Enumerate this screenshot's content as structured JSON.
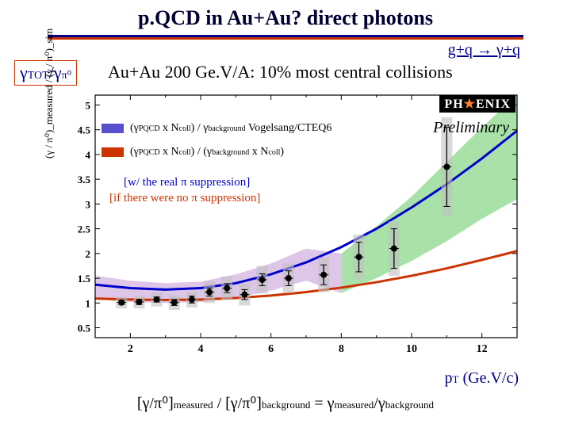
{
  "title": "p.QCD in Au+Au? direct photons",
  "reaction": "g+q → γ+q",
  "ylabel_html": "γ<span class='sub'>TOT</span>/γ<span class='sub'>π⁰</span>",
  "subtitle": "Au+Au 200 Ge.V/A: 10% most central collisions",
  "phenix": {
    "text1": "PH",
    "star": "★",
    "text2": "ENIX"
  },
  "preliminary": "Preliminary",
  "legend1_text": "(γ<span class='sub'>PQCD</span> x N<span class='sub'>coll</span>) / γ<span class='sub'>background</span>  Vogelsang/CTEQ6",
  "legend2_text": "(γ<span class='sub'>PQCD</span> x N<span class='sub'>coll</span>) / (γ<span class='sub'>background</span> x N<span class='sub'>coll</span>)",
  "annotation1": "[w/ the real π suppression]",
  "annotation2": "[if there were no π suppression]",
  "xlabel_html": "p<span class='sub'>T</span> (Ge.V/c)",
  "ratio_html": "[γ/π⁰]<span class='sub'>measured</span> / [γ/π⁰]<span class='sub'>background</span>  =  γ<span class='sub'>measured</span>/γ<span class='sub'>background</span>",
  "axis_sim_label": "(γ / π⁰)_measured / (γ / π⁰)_sim",
  "chart": {
    "type": "scatter+curves",
    "xlim": [
      1,
      13
    ],
    "ylim": [
      0.3,
      5.2
    ],
    "xticks": [
      2,
      4,
      6,
      8,
      10,
      12
    ],
    "yticks": [
      0.5,
      1,
      1.5,
      2,
      2.5,
      3,
      3.5,
      4,
      4.5,
      5
    ],
    "background_color": "#ffffff",
    "axis_color": "#000000",
    "blue_curve": {
      "color": "#0000cd",
      "width": 3,
      "pts": [
        [
          1,
          1.37
        ],
        [
          2,
          1.3
        ],
        [
          3,
          1.27
        ],
        [
          4,
          1.3
        ],
        [
          5,
          1.4
        ],
        [
          6,
          1.58
        ],
        [
          7,
          1.82
        ],
        [
          8,
          2.13
        ],
        [
          9,
          2.5
        ],
        [
          10,
          2.93
        ],
        [
          11,
          3.4
        ],
        [
          12,
          3.92
        ],
        [
          13,
          4.48
        ]
      ]
    },
    "red_curve": {
      "color": "#cc3300",
      "width": 3,
      "pts": [
        [
          1,
          1.09
        ],
        [
          2,
          1.07
        ],
        [
          3,
          1.06
        ],
        [
          4,
          1.07
        ],
        [
          5,
          1.1
        ],
        [
          6,
          1.15
        ],
        [
          7,
          1.22
        ],
        [
          8,
          1.31
        ],
        [
          9,
          1.42
        ],
        [
          10,
          1.55
        ],
        [
          11,
          1.7
        ],
        [
          12,
          1.87
        ],
        [
          13,
          2.05
        ]
      ]
    },
    "green_band": {
      "fill": "#6fcf6f",
      "opacity": 0.6,
      "upper": [
        [
          8,
          2.0
        ],
        [
          9,
          2.55
        ],
        [
          10,
          3.15
        ],
        [
          11,
          3.85
        ],
        [
          12,
          4.55
        ],
        [
          13,
          5.2
        ]
      ],
      "lower": [
        [
          13,
          3.1
        ],
        [
          12,
          2.7
        ],
        [
          11,
          2.25
        ],
        [
          10,
          1.85
        ],
        [
          9,
          1.5
        ],
        [
          8,
          1.2
        ]
      ]
    },
    "purple_band": {
      "fill": "#c8a0d8",
      "opacity": 0.6,
      "upper": [
        [
          1,
          1.55
        ],
        [
          2,
          1.45
        ],
        [
          3,
          1.4
        ],
        [
          4,
          1.43
        ],
        [
          5,
          1.58
        ],
        [
          6,
          1.8
        ],
        [
          7,
          2.1
        ],
        [
          8,
          2.0
        ]
      ],
      "lower": [
        [
          8,
          1.2
        ],
        [
          7,
          1.45
        ],
        [
          6,
          1.25
        ],
        [
          5,
          1.1
        ],
        [
          4,
          1.02
        ],
        [
          3,
          1.0
        ],
        [
          2,
          1.02
        ],
        [
          1,
          1.08
        ]
      ]
    },
    "data": {
      "marker_color": "#000000",
      "marker_radius": 4,
      "points": [
        {
          "x": 1.75,
          "y": 1.01,
          "eyl": 0.04,
          "eyh": 0.04,
          "sy": 0.12
        },
        {
          "x": 2.25,
          "y": 1.02,
          "eyl": 0.05,
          "eyh": 0.05,
          "sy": 0.13
        },
        {
          "x": 2.75,
          "y": 1.07,
          "eyl": 0.05,
          "eyh": 0.05,
          "sy": 0.14
        },
        {
          "x": 3.25,
          "y": 1.01,
          "eyl": 0.06,
          "eyh": 0.06,
          "sy": 0.15
        },
        {
          "x": 3.75,
          "y": 1.07,
          "eyl": 0.07,
          "eyh": 0.07,
          "sy": 0.16
        },
        {
          "x": 4.25,
          "y": 1.22,
          "eyl": 0.08,
          "eyh": 0.08,
          "sy": 0.22
        },
        {
          "x": 4.75,
          "y": 1.3,
          "eyl": 0.09,
          "eyh": 0.09,
          "sy": 0.24
        },
        {
          "x": 5.25,
          "y": 1.17,
          "eyl": 0.1,
          "eyh": 0.1,
          "sy": 0.22
        },
        {
          "x": 5.75,
          "y": 1.47,
          "eyl": 0.12,
          "eyh": 0.12,
          "sy": 0.28
        },
        {
          "x": 6.5,
          "y": 1.5,
          "eyl": 0.15,
          "eyh": 0.15,
          "sy": 0.3
        },
        {
          "x": 7.5,
          "y": 1.57,
          "eyl": 0.2,
          "eyh": 0.2,
          "sy": 0.35
        },
        {
          "x": 8.5,
          "y": 1.93,
          "eyl": 0.3,
          "eyh": 0.3,
          "sy": 0.45
        },
        {
          "x": 9.5,
          "y": 2.1,
          "eyl": 0.4,
          "eyh": 0.4,
          "sy": 0.55
        },
        {
          "x": 11.0,
          "y": 3.75,
          "eyl": 0.8,
          "eyh": 0.8,
          "sy": 1.0
        }
      ]
    },
    "legend_swatch1": "#5a4fcf",
    "legend_swatch2": "#cc3300"
  }
}
